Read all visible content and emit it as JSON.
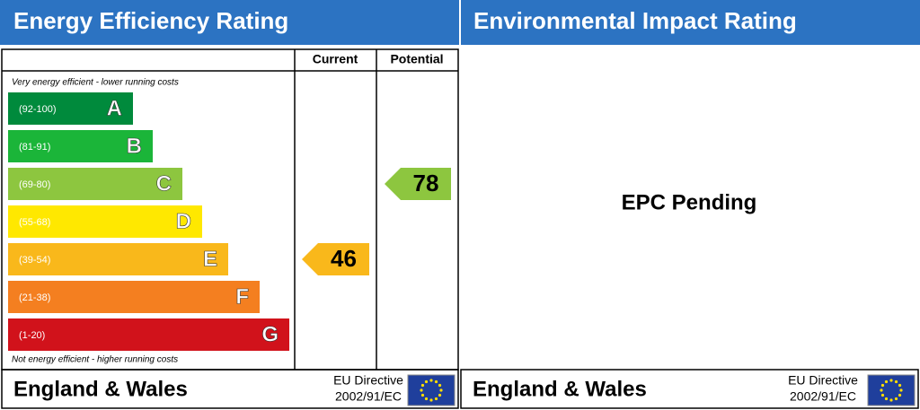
{
  "energy_rating": {
    "title": "Energy Efficiency Rating",
    "columns": [
      "Current",
      "Potential"
    ],
    "top_note": "Very energy efficient - lower running costs",
    "bottom_note": "Not energy efficient - higher running costs",
    "bands": [
      {
        "range": "(92-100)",
        "letter": "A",
        "color": "#008a3c"
      },
      {
        "range": "(81-91)",
        "letter": "B",
        "color": "#1bb539"
      },
      {
        "range": "(69-80)",
        "letter": "C",
        "color": "#8dc63f"
      },
      {
        "range": "(55-68)",
        "letter": "D",
        "color": "#ffe800"
      },
      {
        "range": "(39-54)",
        "letter": "E",
        "color": "#f9b81b"
      },
      {
        "range": "(21-38)",
        "letter": "F",
        "color": "#f47f20"
      },
      {
        "range": "(1-20)",
        "letter": "G",
        "color": "#d1121b"
      }
    ],
    "current": 46,
    "potential": 78,
    "footer": {
      "region": "England & Wales",
      "directive": "EU Directive",
      "code": "2002/91/EC"
    }
  },
  "environmental_rating": {
    "title": "Environmental Impact Rating",
    "status": "EPC Pending",
    "footer": {
      "region": "England & Wales",
      "directive": "EU Directive",
      "code": "2002/91/EC"
    }
  }
}
